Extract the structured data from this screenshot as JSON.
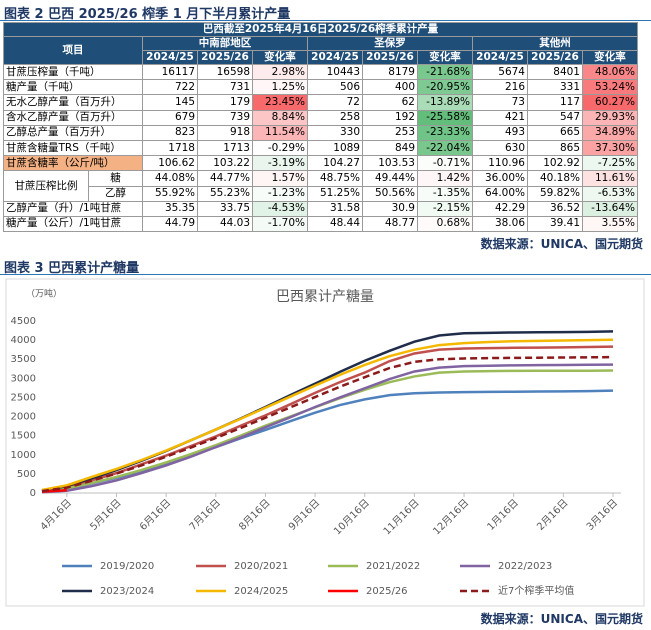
{
  "figure2": {
    "title": "图表 2 巴西 2025/26 榨季 1 月下半月累计产量",
    "table": {
      "caption": "巴西截至2025年4月16日2025/26榨季累计产量",
      "item_header": "项目",
      "groups": [
        "中南部地区",
        "圣保罗",
        "其他州"
      ],
      "columns": [
        "2024/25",
        "2025/26",
        "变化率"
      ],
      "rows": [
        {
          "label": "甘蔗压榨量（千吨）",
          "cells": [
            "16117",
            "16598",
            "2.98%",
            "10443",
            "8179",
            "-21.68%",
            "5674",
            "8401",
            "48.06%"
          ]
        },
        {
          "label": "糖产量（千吨）",
          "cells": [
            "722",
            "731",
            "1.25%",
            "506",
            "400",
            "-20.95%",
            "216",
            "331",
            "53.24%"
          ]
        },
        {
          "label": "无水乙醇产量（百万升）",
          "cells": [
            "145",
            "179",
            "23.45%",
            "72",
            "62",
            "-13.89%",
            "73",
            "117",
            "60.27%"
          ]
        },
        {
          "label": "含水乙醇产量（百万升）",
          "cells": [
            "679",
            "739",
            "8.84%",
            "258",
            "192",
            "-25.58%",
            "421",
            "547",
            "29.93%"
          ]
        },
        {
          "label": "乙醇总产量（百万升）",
          "cells": [
            "823",
            "918",
            "11.54%",
            "330",
            "253",
            "-23.33%",
            "493",
            "665",
            "34.89%"
          ]
        },
        {
          "label": "甘蔗含糖量TRS（千吨）",
          "cells": [
            "1718",
            "1713",
            "-0.29%",
            "1089",
            "849",
            "-22.04%",
            "630",
            "865",
            "37.30%"
          ]
        },
        {
          "label": "甘蔗含糖率（公斤/吨）",
          "highlight": "#f4b183",
          "cells": [
            "106.62",
            "103.22",
            "-3.19%",
            "104.27",
            "103.53",
            "-0.71%",
            "110.96",
            "102.92",
            "-7.25%"
          ]
        },
        {
          "label": "甘蔗压榨比例",
          "sub": "糖",
          "cells": [
            "44.08%",
            "44.77%",
            "1.57%",
            "48.75%",
            "49.44%",
            "1.42%",
            "36.00%",
            "40.18%",
            "11.61%"
          ]
        },
        {
          "sub": "乙醇",
          "cells": [
            "55.92%",
            "55.23%",
            "-1.23%",
            "51.25%",
            "50.56%",
            "-1.35%",
            "64.00%",
            "59.82%",
            "-6.53%"
          ]
        },
        {
          "label": "乙醇产量（升）/1吨甘蔗",
          "cells": [
            "35.35",
            "33.75",
            "-4.53%",
            "31.58",
            "30.9",
            "-2.15%",
            "42.29",
            "36.52",
            "-13.64%"
          ]
        },
        {
          "label": "糖产量（公斤）/1吨甘蔗",
          "cells": [
            "44.79",
            "44.03",
            "-1.70%",
            "48.44",
            "48.77",
            "0.68%",
            "38.06",
            "39.41",
            "3.55%"
          ]
        }
      ]
    },
    "source": "数据来源：UNICA、国元期货"
  },
  "figure3": {
    "title": "图表 3 巴西累计产糖量",
    "source": "数据来源：UNICA、国元期货"
  },
  "chart_data": {
    "type": "line",
    "title": "巴西累计产糖量",
    "y_unit": "（万吨）",
    "grid": false,
    "categories": [
      null,
      "4月16日",
      null,
      "5月16日",
      null,
      "6月16日",
      null,
      "7月16日",
      null,
      "8月16日",
      null,
      "9月16日",
      null,
      "10月16日",
      null,
      "11月16日",
      null,
      "12月16日",
      null,
      "1月16日",
      null,
      "2月16日",
      null,
      "3月16日"
    ],
    "ylim": [
      0,
      4500
    ],
    "yticks": [
      0,
      500,
      1000,
      1500,
      2000,
      2500,
      3000,
      3500,
      4000,
      4500
    ],
    "series": [
      {
        "name": "2019/2020",
        "color": "#4f81bd",
        "values": [
          40,
          100,
          250,
          400,
          580,
          780,
          980,
          1200,
          1430,
          1650,
          1880,
          2100,
          2300,
          2450,
          2560,
          2610,
          2630,
          2640,
          2645,
          2650,
          2655,
          2660,
          2665,
          2680
        ]
      },
      {
        "name": "2020/2021",
        "color": "#c0504d",
        "values": [
          60,
          150,
          330,
          520,
          750,
          980,
          1230,
          1480,
          1760,
          2030,
          2320,
          2620,
          2900,
          3150,
          3450,
          3650,
          3750,
          3780,
          3790,
          3800,
          3805,
          3810,
          3820,
          3830
        ]
      },
      {
        "name": "2021/2022",
        "color": "#9bbb59",
        "values": [
          40,
          120,
          260,
          420,
          600,
          800,
          1020,
          1250,
          1500,
          1760,
          2000,
          2240,
          2480,
          2700,
          2900,
          3050,
          3150,
          3180,
          3190,
          3195,
          3198,
          3200,
          3200,
          3205
        ]
      },
      {
        "name": "2022/2023",
        "color": "#8064a2",
        "values": [
          20,
          60,
          180,
          330,
          520,
          720,
          950,
          1200,
          1450,
          1720,
          1980,
          2250,
          2500,
          2740,
          2980,
          3180,
          3280,
          3320,
          3330,
          3340,
          3345,
          3350,
          3355,
          3360
        ]
      },
      {
        "name": "2023/2024",
        "color": "#1f2d4a",
        "values": [
          60,
          180,
          380,
          600,
          840,
          1100,
          1380,
          1660,
          1950,
          2250,
          2560,
          2860,
          3170,
          3460,
          3720,
          3960,
          4120,
          4180,
          4190,
          4200,
          4205,
          4210,
          4215,
          4230
        ]
      },
      {
        "name": "2024/2025",
        "color": "#f5b800",
        "values": [
          80,
          200,
          420,
          630,
          860,
          1110,
          1380,
          1660,
          1940,
          2230,
          2520,
          2810,
          3090,
          3350,
          3580,
          3750,
          3870,
          3920,
          3950,
          3970,
          3980,
          3990,
          4000,
          4010
        ]
      },
      {
        "name": "2025/26",
        "color": "#ff0000",
        "values": [
          35,
          73.1,
          null,
          null,
          null,
          null,
          null,
          null,
          null,
          null,
          null,
          null,
          null,
          null,
          null,
          null,
          null,
          null,
          null,
          null,
          null,
          null,
          null,
          null
        ]
      },
      {
        "name": "近7个榨季平均值",
        "color": "#8b1a1a",
        "dash": true,
        "values": [
          50,
          140,
          320,
          510,
          720,
          950,
          1190,
          1440,
          1700,
          1970,
          2240,
          2510,
          2780,
          3030,
          3270,
          3430,
          3500,
          3520,
          3530,
          3535,
          3540,
          3545,
          3550,
          3555
        ]
      }
    ]
  }
}
